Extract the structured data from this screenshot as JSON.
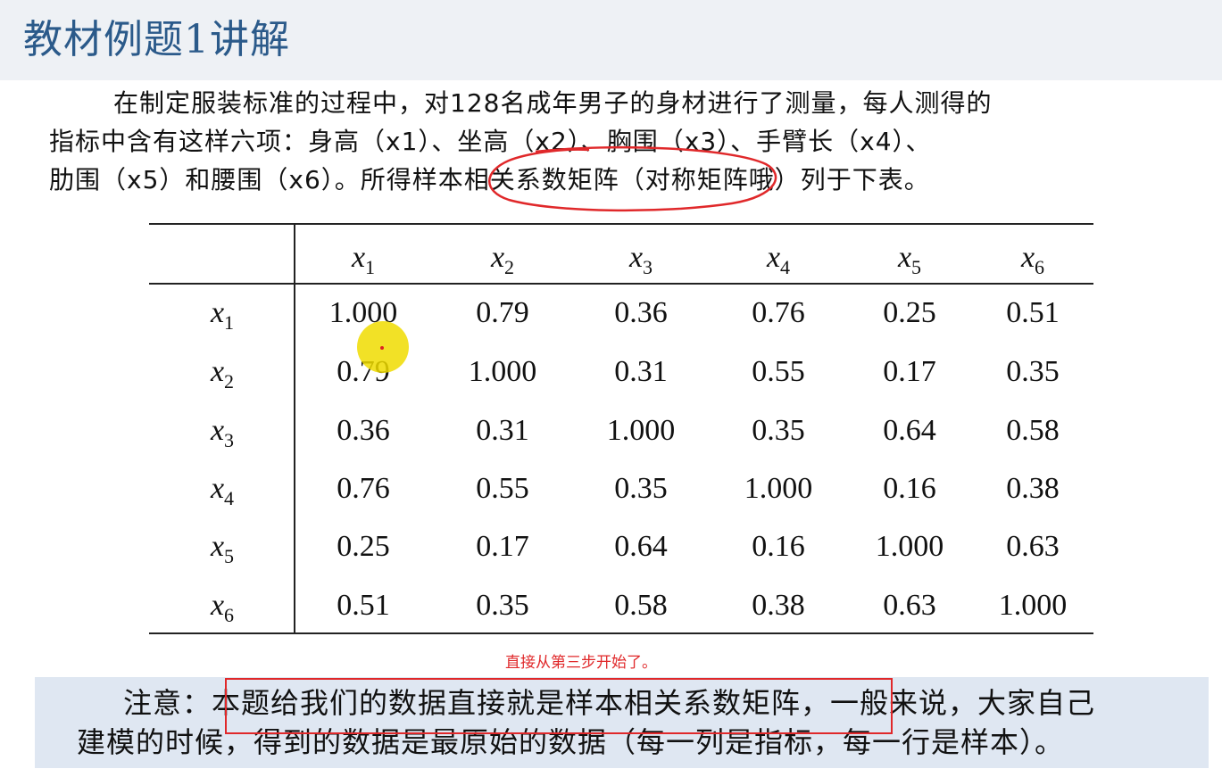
{
  "header": {
    "title": "教材例题1讲解"
  },
  "paragraph": {
    "line1": "在制定服装标准的过程中，对128名成年男子的身材进行了测量，每人测得的",
    "line2": "指标中含有这样六项：身高（x1）、坐高（x2）、胸围（x3）、手臂长（x4）、",
    "line3": "肋围（x5）和腰围（x6）。所得样本相关系数矩阵（对称矩阵哦）列于下表。"
  },
  "table": {
    "col_headers": [
      {
        "base": "x",
        "sub": "1"
      },
      {
        "base": "x",
        "sub": "2"
      },
      {
        "base": "x",
        "sub": "3"
      },
      {
        "base": "x",
        "sub": "4"
      },
      {
        "base": "x",
        "sub": "5"
      },
      {
        "base": "x",
        "sub": "6"
      }
    ],
    "row_headers": [
      {
        "base": "x",
        "sub": "1"
      },
      {
        "base": "x",
        "sub": "2"
      },
      {
        "base": "x",
        "sub": "3"
      },
      {
        "base": "x",
        "sub": "4"
      },
      {
        "base": "x",
        "sub": "5"
      },
      {
        "base": "x",
        "sub": "6"
      }
    ],
    "rows": [
      [
        "1.000",
        "0.79",
        "0.36",
        "0.76",
        "0.25",
        "0.51"
      ],
      [
        "0.79",
        "1.000",
        "0.31",
        "0.55",
        "0.17",
        "0.35"
      ],
      [
        "0.36",
        "0.31",
        "1.000",
        "0.35",
        "0.64",
        "0.58"
      ],
      [
        "0.76",
        "0.55",
        "0.35",
        "1.000",
        "0.16",
        "0.38"
      ],
      [
        "0.25",
        "0.17",
        "0.64",
        "0.16",
        "1.000",
        "0.63"
      ],
      [
        "0.51",
        "0.35",
        "0.58",
        "0.38",
        "0.63",
        "1.000"
      ]
    ]
  },
  "annotation": {
    "caption": "直接从第三步开始了。"
  },
  "note": {
    "line1": "注意：本题给我们的数据直接就是样本相关系数矩阵，一般来说，大家自己",
    "line2": "建模的时候，得到的数据是最原始的数据（每一列是指标，每一行是样本）。"
  },
  "colors": {
    "title": "#2b5a8a",
    "annotation_red": "#e0282a",
    "note_bg": "#dfe7f2",
    "highlight": "#f0dc00"
  }
}
